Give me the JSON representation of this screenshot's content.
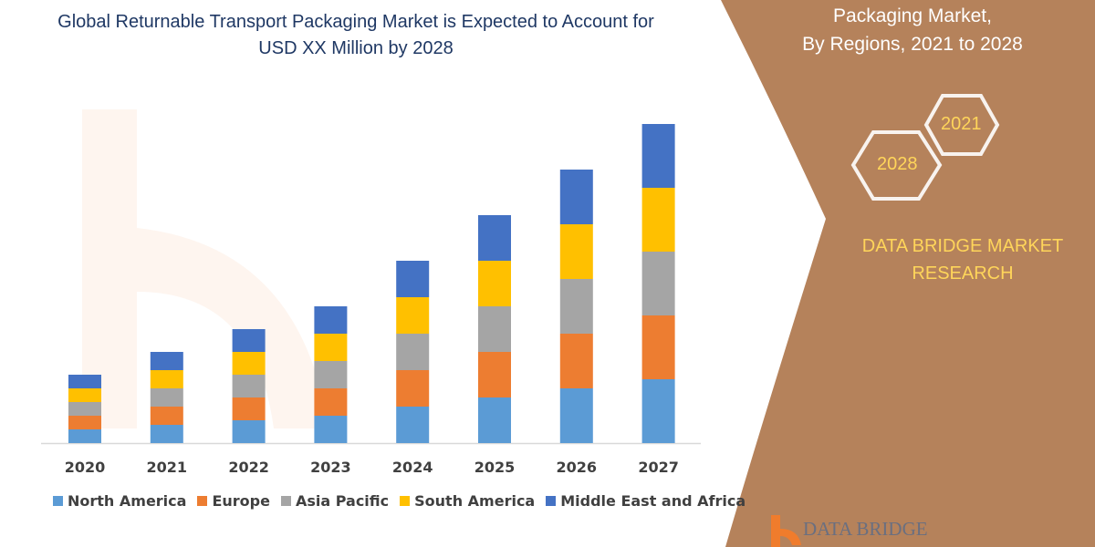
{
  "title": "Global Returnable Transport Packaging Market is Expected to Account for USD XX Million by 2028",
  "side_panel": {
    "line1": "Packaging Market,",
    "line2": "By Regions, 2021 to 2028",
    "hex_2021": "2021",
    "hex_2028": "2028",
    "brand": "DATA BRIDGE MARKET RESEARCH",
    "footer_logo": "DATA BRIDGE",
    "background_color": "#B5825B"
  },
  "chart_data": {
    "type": "bar",
    "stacked": true,
    "categories": [
      "2020",
      "2021",
      "2022",
      "2023",
      "2024",
      "2025",
      "2026",
      "2027"
    ],
    "series": [
      {
        "name": "North America",
        "color": "#5B9BD5",
        "values": [
          15,
          20,
          25,
          30,
          40,
          50,
          60,
          70
        ]
      },
      {
        "name": "Europe",
        "color": "#ED7D31",
        "values": [
          15,
          20,
          25,
          30,
          40,
          50,
          60,
          70
        ]
      },
      {
        "name": "Asia Pacific",
        "color": "#A5A5A5",
        "values": [
          15,
          20,
          25,
          30,
          40,
          50,
          60,
          70
        ]
      },
      {
        "name": "South America",
        "color": "#FFC000",
        "values": [
          15,
          20,
          25,
          30,
          40,
          50,
          60,
          70
        ]
      },
      {
        "name": "Middle East and Africa",
        "color": "#4472C4",
        "values": [
          15,
          20,
          25,
          30,
          40,
          50,
          60,
          70
        ]
      }
    ],
    "ylim": [
      0,
      360
    ],
    "y_axis_shown": false,
    "grid": false,
    "legend_position": "bottom"
  }
}
